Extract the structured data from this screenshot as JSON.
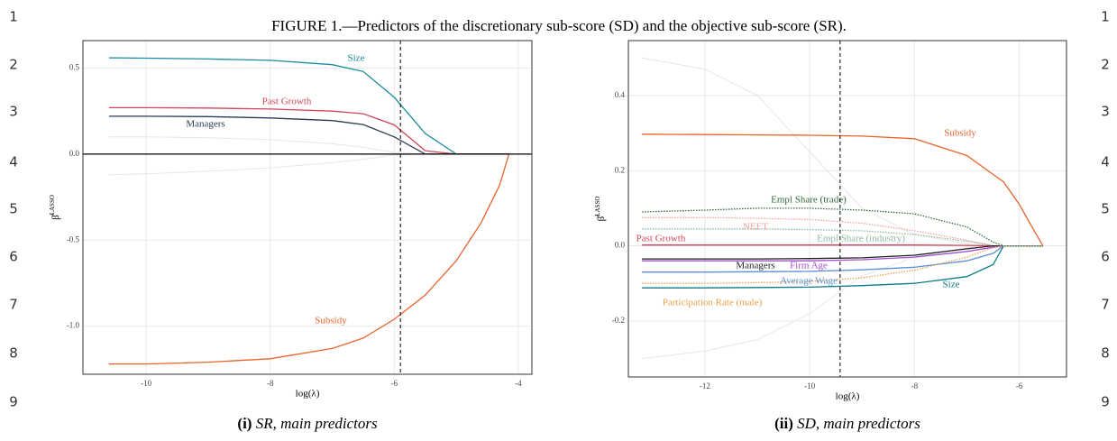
{
  "figure_caption": "FIGURE 1.—Predictors of the discretionary sub-score (SD) and the objective sub-score (SR).",
  "line_numbers": [
    1,
    2,
    3,
    4,
    5,
    6,
    7,
    8,
    9
  ],
  "chart_data": [
    {
      "type": "line",
      "caption_label": "(i)",
      "caption": "SR, main predictors",
      "x_label": "log(λ)",
      "y_label": "β̂",
      "y_label_superscript": "LASSO",
      "xlim": [
        -11.02,
        -3.78
      ],
      "ylim": [
        -1.28,
        0.66
      ],
      "xticks": [
        -10,
        -8,
        -6,
        -4
      ],
      "yticks": [
        0.5,
        {
          "value": 0,
          "label": "0.0"
        },
        -0.5,
        {
          "value": -1,
          "label": "-1.0"
        }
      ],
      "grid": true,
      "vline": -5.9,
      "hline": 0,
      "x": [
        -10.6,
        -10,
        -9,
        -8,
        -7,
        -6.5,
        -6,
        -5.5,
        -5,
        -4.6,
        -4.3,
        -4.15
      ],
      "series": [
        {
          "color": "#e6e6e6",
          "values": [
            0.1,
            0.1,
            0.095,
            0.085,
            0.06,
            0.04,
            0.01,
            0,
            0,
            0,
            0,
            0
          ]
        },
        {
          "color": "#e6e6e6",
          "values": [
            -0.12,
            -0.115,
            -0.1,
            -0.08,
            -0.05,
            -0.03,
            -0.005,
            0,
            0,
            0,
            0,
            0
          ]
        },
        {
          "name": "Size",
          "color": "#1a8a9e",
          "values": [
            0.56,
            0.558,
            0.553,
            0.545,
            0.52,
            0.48,
            0.33,
            0.12,
            0,
            0,
            0,
            0
          ]
        },
        {
          "name": "Past Growth",
          "color": "#d0465a",
          "values": [
            0.27,
            0.27,
            0.268,
            0.262,
            0.25,
            0.235,
            0.17,
            0.02,
            0,
            0,
            0,
            0
          ]
        },
        {
          "name": "Managers",
          "color": "#2b3a55",
          "values": [
            0.22,
            0.22,
            0.218,
            0.21,
            0.195,
            0.172,
            0.1,
            0,
            0,
            0,
            0,
            0
          ]
        },
        {
          "name": "Subsidy",
          "color": "#e8642c",
          "values": [
            -1.22,
            -1.22,
            -1.21,
            -1.19,
            -1.13,
            -1.07,
            -0.96,
            -0.82,
            -0.62,
            -0.4,
            -0.18,
            0
          ]
        }
      ]
    },
    {
      "type": "line",
      "caption_label": "(ii)",
      "caption": "SD, main predictors",
      "x_label": "log(λ)",
      "y_label": "β̂",
      "y_label_superscript": "LASSO",
      "xlim": [
        -13.46,
        -5.1
      ],
      "ylim": [
        -0.349,
        0.546
      ],
      "xticks": [
        -12,
        -10,
        -8,
        -6
      ],
      "yticks": [
        0.4,
        0.2,
        {
          "value": 0,
          "label": "0.0"
        },
        -0.2
      ],
      "grid": true,
      "vline": -9.42,
      "x": [
        -13.2,
        -12,
        -11,
        -10,
        -9,
        -8,
        -7,
        -6.5,
        -6.3,
        -6,
        -5.8,
        -5.55
      ],
      "series": [
        {
          "color": "#e6e6e6",
          "values": [
            0.5,
            0.47,
            0.4,
            0.25,
            0.1,
            0.03,
            0.005,
            0,
            0,
            0,
            0,
            0
          ]
        },
        {
          "color": "#e6e6e6",
          "values": [
            -0.3,
            -0.28,
            -0.25,
            -0.18,
            -0.08,
            -0.03,
            -0.005,
            0,
            0,
            0,
            0,
            0
          ]
        },
        {
          "name": "Subsidy",
          "color": "#e8642c",
          "values": [
            0.297,
            0.296,
            0.295,
            0.294,
            0.292,
            0.285,
            0.24,
            0.19,
            0.17,
            0.11,
            0.06,
            0
          ]
        },
        {
          "name": "Empl Share (trade)",
          "color": "#2e6b3a",
          "style": "dotted",
          "values": [
            0.09,
            0.095,
            0.1,
            0.1,
            0.095,
            0.085,
            0.05,
            0.01,
            0,
            0,
            0,
            0
          ]
        },
        {
          "name": "NEET",
          "color": "#f0a0a0",
          "style": "dotted",
          "values": [
            0.075,
            0.075,
            0.073,
            0.07,
            0.06,
            0.04,
            0.015,
            0,
            0,
            0,
            0,
            0
          ]
        },
        {
          "name": "Empl Share (industry)",
          "color": "#8fb89a",
          "style": "dotted",
          "values": [
            0.045,
            0.045,
            0.045,
            0.043,
            0.04,
            0.03,
            0.012,
            0,
            0,
            0,
            0,
            0
          ]
        },
        {
          "name": "Past Growth",
          "color": "#d0465a",
          "values": [
            0.002,
            0.002,
            0.002,
            0.002,
            0.002,
            0.002,
            0.001,
            0,
            0,
            0,
            0,
            0
          ]
        },
        {
          "name": "Managers",
          "color": "#222222",
          "values": [
            -0.035,
            -0.035,
            -0.035,
            -0.034,
            -0.032,
            -0.025,
            -0.008,
            0,
            0,
            0,
            0,
            0
          ]
        },
        {
          "name": "Firm Age",
          "color": "#a050d0",
          "values": [
            -0.04,
            -0.04,
            -0.04,
            -0.04,
            -0.037,
            -0.03,
            -0.015,
            -0.004,
            0,
            0,
            0,
            0
          ]
        },
        {
          "name": "Average Wage",
          "color": "#5b8fd6",
          "values": [
            -0.07,
            -0.07,
            -0.069,
            -0.068,
            -0.064,
            -0.057,
            -0.04,
            -0.02,
            0,
            0,
            0,
            0
          ]
        },
        {
          "name": "Size",
          "color": "#0e7c86",
          "values": [
            -0.112,
            -0.112,
            -0.111,
            -0.11,
            -0.106,
            -0.1,
            -0.082,
            -0.05,
            0,
            0,
            0,
            0
          ]
        },
        {
          "name": "Participation Rate (male)",
          "color": "#e8a24a",
          "style": "dotted",
          "values": [
            -0.1,
            -0.1,
            -0.098,
            -0.095,
            -0.085,
            -0.065,
            -0.03,
            -0.005,
            0,
            0,
            0,
            0
          ]
        }
      ]
    }
  ]
}
